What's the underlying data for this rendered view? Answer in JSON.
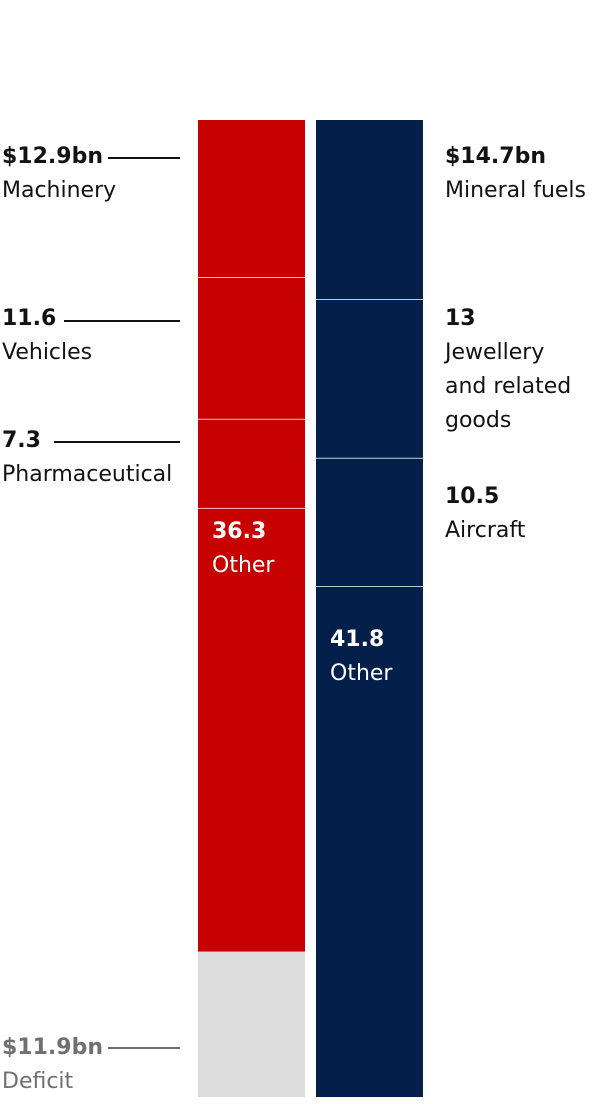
{
  "chart_data": {
    "type": "bar",
    "title": "",
    "xlabel": "",
    "ylabel": "",
    "colors": {
      "left": "#c70000",
      "right": "#041f4a",
      "deficit": "#dcdcdc",
      "muted_text": "#707070"
    },
    "series": [
      {
        "segments": [
          {
            "value": 12.9,
            "value_label": "$12.9bn",
            "category": "Machinery"
          },
          {
            "value": 11.6,
            "value_label": "11.6",
            "category": "Vehicles"
          },
          {
            "value": 7.3,
            "value_label": "7.3",
            "category": "Pharmaceutical"
          },
          {
            "value": 36.3,
            "value_label": "36.3",
            "category": "Other"
          },
          {
            "value": 11.9,
            "value_label": "$11.9bn",
            "category": "Deficit"
          }
        ]
      },
      {
        "segments": [
          {
            "value": 14.7,
            "value_label": "$14.7bn",
            "category": "Mineral fuels"
          },
          {
            "value": 13,
            "value_label": "13",
            "category": "Jewellery\nand related\ngoods"
          },
          {
            "value": 10.5,
            "value_label": "10.5",
            "category": "Aircraft"
          },
          {
            "value": 41.8,
            "value_label": "41.8",
            "category": "Other"
          }
        ]
      }
    ],
    "total": 80
  }
}
